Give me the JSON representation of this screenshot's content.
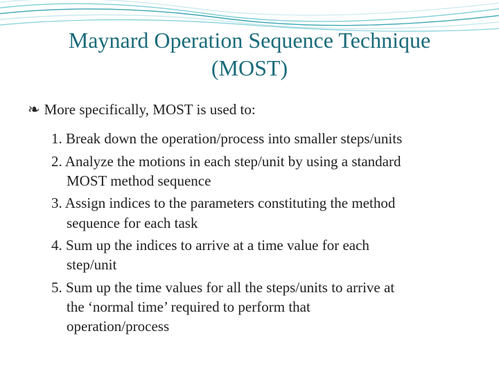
{
  "title_fontsize": 32,
  "title_color": "#1a6b7a",
  "body_fontsize": 21,
  "body_color": "#222222",
  "background_color": "#ffffff",
  "wave": {
    "colors": [
      "#7ecfd6",
      "#3aa7b3",
      "#c9e8ec"
    ],
    "stroke_width": 1.4
  },
  "title_line1": "Maynard Operation Sequence Technique",
  "title_line2": "(MOST)",
  "lead_bullet": "❧",
  "lead_text": "More specifically, MOST is used to:",
  "items": [
    {
      "num": "1.",
      "lines": [
        "Break down the operation/process into smaller steps/units"
      ]
    },
    {
      "num": "2.",
      "lines": [
        "Analyze the motions in each step/unit by using a standard",
        "MOST method sequence"
      ]
    },
    {
      "num": "3.",
      "lines": [
        "Assign indices to the parameters constituting the method",
        "sequence for each task"
      ]
    },
    {
      "num": "4.",
      "lines": [
        "Sum up the indices to arrive at a time value for each",
        "step/unit"
      ]
    },
    {
      "num": "5.",
      "lines": [
        "Sum up the time values for all the steps/units to arrive at",
        "the ‘normal time’ required to perform that",
        "operation/process"
      ]
    }
  ]
}
